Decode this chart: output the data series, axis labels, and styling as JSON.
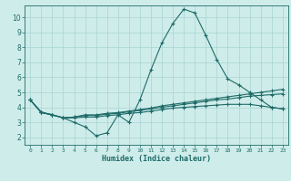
{
  "xlabel": "Humidex (Indice chaleur)",
  "xlim": [
    -0.5,
    23.5
  ],
  "ylim": [
    1.5,
    10.8
  ],
  "yticks": [
    2,
    3,
    4,
    5,
    6,
    7,
    8,
    9,
    10
  ],
  "xticks": [
    0,
    1,
    2,
    3,
    4,
    5,
    6,
    7,
    8,
    9,
    10,
    11,
    12,
    13,
    14,
    15,
    16,
    17,
    18,
    19,
    20,
    21,
    22,
    23
  ],
  "background_color": "#ceecea",
  "grid_color": "#a8d5d2",
  "line_color": "#1e6b68",
  "curves": [
    {
      "x": [
        0,
        1,
        2,
        3,
        4,
        5,
        6,
        7,
        8,
        9,
        10,
        11,
        12,
        13,
        14,
        15,
        16,
        17,
        18,
        19,
        20,
        21,
        22,
        23
      ],
      "y": [
        4.5,
        3.7,
        3.5,
        3.3,
        3.0,
        2.7,
        2.1,
        2.3,
        3.5,
        3.0,
        4.5,
        6.5,
        8.3,
        9.6,
        10.55,
        10.3,
        8.8,
        7.2,
        5.9,
        5.5,
        5.0,
        4.5,
        4.0,
        3.9
      ]
    },
    {
      "x": [
        0,
        1,
        2,
        3,
        4,
        5,
        6,
        7,
        8,
        9,
        10,
        11,
        12,
        13,
        14,
        15,
        16,
        17,
        18,
        19,
        20,
        21,
        22,
        23
      ],
      "y": [
        4.5,
        3.65,
        3.5,
        3.3,
        3.35,
        3.5,
        3.5,
        3.6,
        3.65,
        3.75,
        3.85,
        3.95,
        4.1,
        4.2,
        4.3,
        4.4,
        4.5,
        4.6,
        4.7,
        4.8,
        4.9,
        5.0,
        5.1,
        5.2
      ]
    },
    {
      "x": [
        0,
        1,
        2,
        3,
        4,
        5,
        6,
        7,
        8,
        9,
        10,
        11,
        12,
        13,
        14,
        15,
        16,
        17,
        18,
        19,
        20,
        21,
        22,
        23
      ],
      "y": [
        4.5,
        3.65,
        3.5,
        3.3,
        3.35,
        3.45,
        3.45,
        3.55,
        3.6,
        3.7,
        3.8,
        3.9,
        4.0,
        4.1,
        4.2,
        4.3,
        4.4,
        4.5,
        4.55,
        4.65,
        4.75,
        4.8,
        4.85,
        4.9
      ]
    },
    {
      "x": [
        0,
        1,
        2,
        3,
        4,
        5,
        6,
        7,
        8,
        9,
        10,
        11,
        12,
        13,
        14,
        15,
        16,
        17,
        18,
        19,
        20,
        21,
        22,
        23
      ],
      "y": [
        4.5,
        3.65,
        3.5,
        3.3,
        3.3,
        3.35,
        3.35,
        3.45,
        3.5,
        3.6,
        3.65,
        3.75,
        3.85,
        3.95,
        4.0,
        4.05,
        4.1,
        4.15,
        4.2,
        4.2,
        4.2,
        4.1,
        4.0,
        3.9
      ]
    }
  ]
}
